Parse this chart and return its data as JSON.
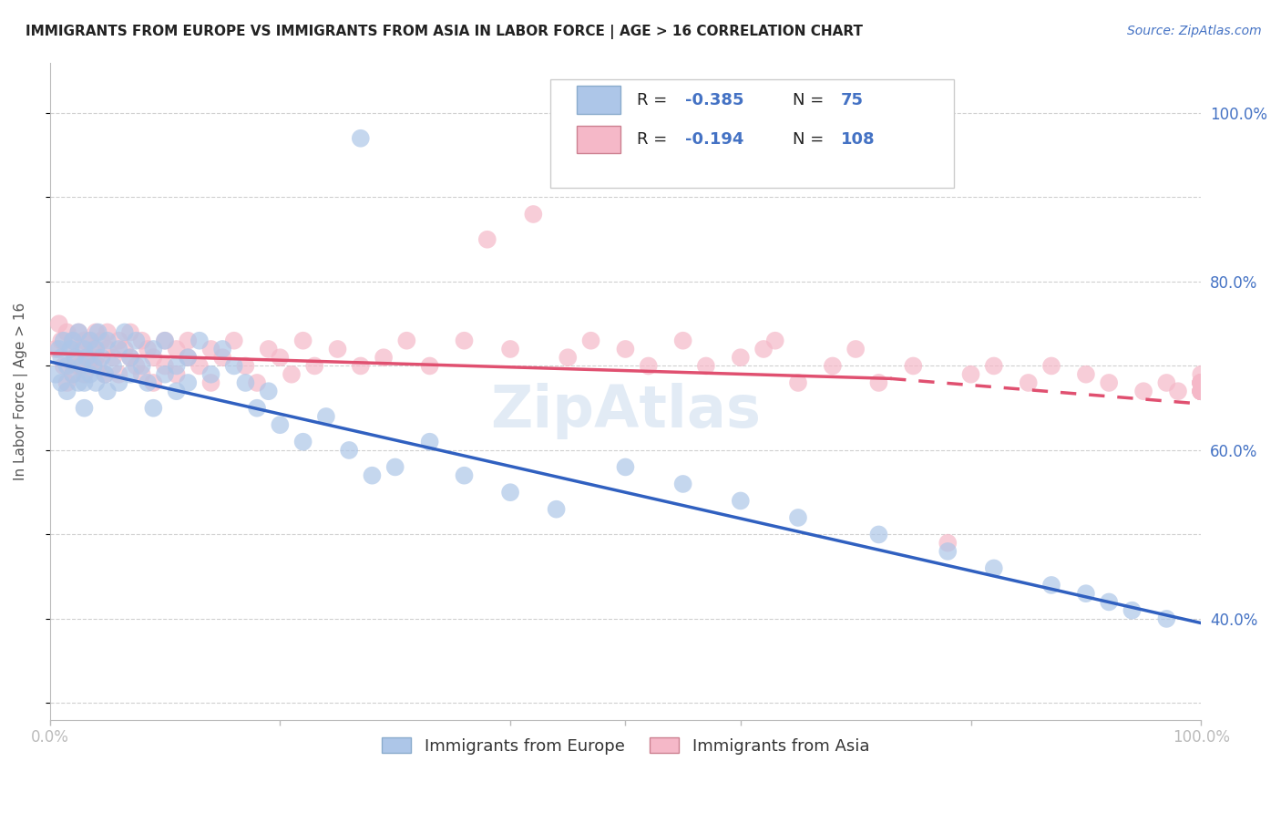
{
  "title": "IMMIGRANTS FROM EUROPE VS IMMIGRANTS FROM ASIA IN LABOR FORCE | AGE > 16 CORRELATION CHART",
  "source": "Source: ZipAtlas.com",
  "ylabel": "In Labor Force | Age > 16",
  "xlim": [
    0.0,
    1.0
  ],
  "ylim": [
    0.28,
    1.06
  ],
  "europe_R": "-0.385",
  "europe_N": "75",
  "asia_R": "-0.194",
  "asia_N": "108",
  "europe_color": "#adc6e8",
  "asia_color": "#f5b8c8",
  "europe_line_color": "#3060c0",
  "asia_line_color": "#e05070",
  "background_color": "#ffffff",
  "grid_color": "#d0d0d0",
  "watermark": "ZipAtlas",
  "europe_x": [
    0.005,
    0.008,
    0.01,
    0.01,
    0.012,
    0.015,
    0.015,
    0.018,
    0.02,
    0.02,
    0.022,
    0.025,
    0.025,
    0.028,
    0.03,
    0.03,
    0.03,
    0.032,
    0.035,
    0.035,
    0.038,
    0.04,
    0.04,
    0.042,
    0.045,
    0.048,
    0.05,
    0.05,
    0.055,
    0.06,
    0.06,
    0.065,
    0.07,
    0.07,
    0.075,
    0.08,
    0.085,
    0.09,
    0.09,
    0.1,
    0.1,
    0.11,
    0.11,
    0.12,
    0.12,
    0.13,
    0.14,
    0.15,
    0.16,
    0.17,
    0.18,
    0.19,
    0.2,
    0.22,
    0.24,
    0.26,
    0.28,
    0.3,
    0.33,
    0.36,
    0.4,
    0.44,
    0.5,
    0.55,
    0.6,
    0.65,
    0.72,
    0.78,
    0.82,
    0.87,
    0.9,
    0.92,
    0.94,
    0.97,
    0.27
  ],
  "europe_y": [
    0.69,
    0.72,
    0.71,
    0.68,
    0.73,
    0.7,
    0.67,
    0.72,
    0.69,
    0.73,
    0.71,
    0.68,
    0.74,
    0.7,
    0.72,
    0.68,
    0.65,
    0.71,
    0.69,
    0.73,
    0.7,
    0.68,
    0.72,
    0.74,
    0.71,
    0.69,
    0.73,
    0.67,
    0.7,
    0.72,
    0.68,
    0.74,
    0.71,
    0.69,
    0.73,
    0.7,
    0.68,
    0.72,
    0.65,
    0.69,
    0.73,
    0.7,
    0.67,
    0.71,
    0.68,
    0.73,
    0.69,
    0.72,
    0.7,
    0.68,
    0.65,
    0.67,
    0.63,
    0.61,
    0.64,
    0.6,
    0.57,
    0.58,
    0.61,
    0.57,
    0.55,
    0.53,
    0.58,
    0.56,
    0.54,
    0.52,
    0.5,
    0.48,
    0.46,
    0.44,
    0.43,
    0.42,
    0.41,
    0.4,
    0.97
  ],
  "asia_x": [
    0.005,
    0.008,
    0.01,
    0.012,
    0.015,
    0.015,
    0.018,
    0.02,
    0.02,
    0.022,
    0.025,
    0.025,
    0.028,
    0.03,
    0.03,
    0.032,
    0.035,
    0.035,
    0.038,
    0.04,
    0.04,
    0.042,
    0.045,
    0.048,
    0.05,
    0.05,
    0.055,
    0.06,
    0.06,
    0.065,
    0.07,
    0.07,
    0.075,
    0.08,
    0.08,
    0.085,
    0.09,
    0.09,
    0.1,
    0.1,
    0.11,
    0.11,
    0.12,
    0.12,
    0.13,
    0.14,
    0.14,
    0.15,
    0.16,
    0.17,
    0.18,
    0.19,
    0.2,
    0.21,
    0.22,
    0.23,
    0.25,
    0.27,
    0.29,
    0.31,
    0.33,
    0.36,
    0.38,
    0.4,
    0.42,
    0.45,
    0.47,
    0.5,
    0.52,
    0.55,
    0.57,
    0.6,
    0.62,
    0.63,
    0.65,
    0.68,
    0.7,
    0.72,
    0.75,
    0.78,
    0.8,
    0.82,
    0.85,
    0.87,
    0.9,
    0.92,
    0.95,
    0.97,
    0.98,
    1.0,
    1.0,
    1.0,
    1.0,
    1.0,
    1.0,
    1.0,
    1.0,
    1.0,
    1.0,
    1.0,
    1.0,
    1.0,
    1.0,
    1.0,
    1.0,
    1.0,
    1.0,
    1.0
  ],
  "asia_y": [
    0.72,
    0.75,
    0.73,
    0.7,
    0.74,
    0.68,
    0.72,
    0.73,
    0.69,
    0.71,
    0.74,
    0.7,
    0.72,
    0.73,
    0.69,
    0.71,
    0.73,
    0.7,
    0.72,
    0.71,
    0.74,
    0.7,
    0.73,
    0.69,
    0.72,
    0.74,
    0.71,
    0.73,
    0.69,
    0.72,
    0.71,
    0.74,
    0.7,
    0.73,
    0.69,
    0.72,
    0.71,
    0.68,
    0.73,
    0.7,
    0.72,
    0.69,
    0.71,
    0.73,
    0.7,
    0.72,
    0.68,
    0.71,
    0.73,
    0.7,
    0.68,
    0.72,
    0.71,
    0.69,
    0.73,
    0.7,
    0.72,
    0.7,
    0.71,
    0.73,
    0.7,
    0.73,
    0.85,
    0.72,
    0.88,
    0.71,
    0.73,
    0.72,
    0.7,
    0.73,
    0.7,
    0.71,
    0.72,
    0.73,
    0.68,
    0.7,
    0.72,
    0.68,
    0.7,
    0.49,
    0.69,
    0.7,
    0.68,
    0.7,
    0.69,
    0.68,
    0.67,
    0.68,
    0.67,
    0.69,
    0.68,
    0.67,
    0.68,
    0.67,
    0.68,
    0.67,
    0.68,
    0.67,
    0.68,
    0.67,
    0.68,
    0.67,
    0.68,
    0.67,
    0.68,
    0.67,
    0.68,
    0.67
  ],
  "europe_line_x0": 0.0,
  "europe_line_x1": 1.0,
  "europe_line_y0": 0.705,
  "europe_line_y1": 0.395,
  "asia_line_x0": 0.0,
  "asia_line_x1": 0.73,
  "asia_line_x1_dash": 1.0,
  "asia_line_y0": 0.715,
  "asia_line_y1": 0.685,
  "asia_line_y1_dash": 0.655
}
